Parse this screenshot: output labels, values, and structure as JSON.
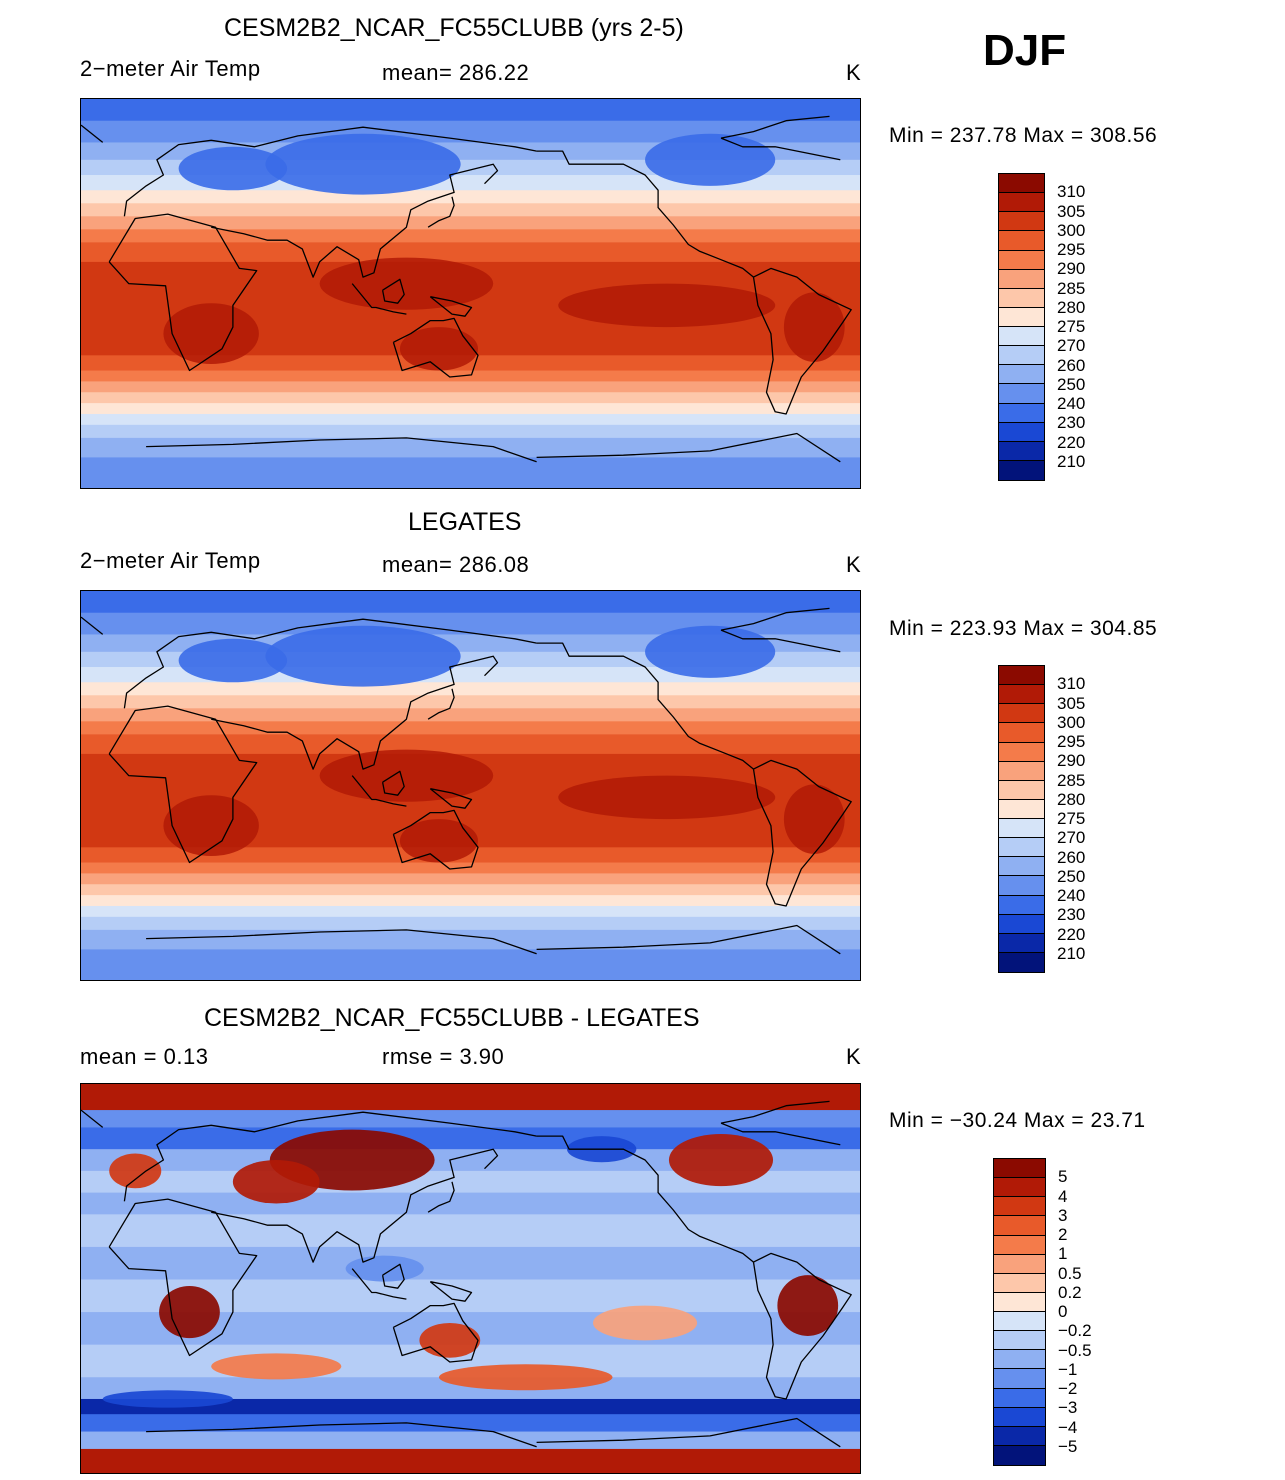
{
  "season": "DJF",
  "panels": [
    {
      "title": "CESM2B2_NCAR_FC55CLUBB (yrs 2-5)",
      "variable": "2−meter Air Temp",
      "stat": "mean=  286.22",
      "units": "K",
      "minmax": "Min  =  237.78  Max  =  308.56"
    },
    {
      "title": "LEGATES",
      "variable": "2−meter Air Temp",
      "stat": "mean=  286.08",
      "units": "K",
      "minmax": "Min  =  223.93  Max  =  304.85"
    },
    {
      "title": "CESM2B2_NCAR_FC55CLUBB - LEGATES",
      "stat1": "mean  =      0.13",
      "stat2": "rmse  =      3.90",
      "units": "K",
      "minmax": "Min  =  −30.24  Max  =     23.71"
    }
  ],
  "chart_data": [
    {
      "type": "heatmap",
      "title": "CESM2B2_NCAR_FC55CLUBB (yrs 2-5)",
      "variable": "2-meter Air Temp",
      "units": "K",
      "mean": 286.22,
      "min": 237.78,
      "max": 308.56,
      "colorbar": {
        "levels": [
          "310",
          "305",
          "300",
          "295",
          "290",
          "285",
          "280",
          "275",
          "270",
          "260",
          "250",
          "240",
          "230",
          "220",
          "210"
        ],
        "colors": [
          "#8b0a00",
          "#b11a06",
          "#d13812",
          "#e85a2a",
          "#f47b4a",
          "#f9a27c",
          "#fdc7aa",
          "#fee6d6",
          "#d6e4f8",
          "#b5cdf6",
          "#8fb0f2",
          "#6690ee",
          "#3a6ce8",
          "#1a48d4",
          "#0a28a8",
          "#02137a"
        ]
      }
    },
    {
      "type": "heatmap",
      "title": "LEGATES",
      "variable": "2-meter Air Temp",
      "units": "K",
      "mean": 286.08,
      "min": 223.93,
      "max": 304.85,
      "colorbar": {
        "levels": [
          "310",
          "305",
          "300",
          "295",
          "290",
          "285",
          "280",
          "275",
          "270",
          "260",
          "250",
          "240",
          "230",
          "220",
          "210"
        ],
        "colors": [
          "#8b0a00",
          "#b11a06",
          "#d13812",
          "#e85a2a",
          "#f47b4a",
          "#f9a27c",
          "#fdc7aa",
          "#fee6d6",
          "#d6e4f8",
          "#b5cdf6",
          "#8fb0f2",
          "#6690ee",
          "#3a6ce8",
          "#1a48d4",
          "#0a28a8",
          "#02137a"
        ]
      }
    },
    {
      "type": "heatmap",
      "title": "CESM2B2_NCAR_FC55CLUBB - LEGATES",
      "units": "K",
      "mean": 0.13,
      "rmse": 3.9,
      "min": -30.24,
      "max": 23.71,
      "colorbar": {
        "levels": [
          "5",
          "4",
          "3",
          "2",
          "1",
          "0.5",
          "0.2",
          "0",
          "−0.2",
          "−0.5",
          "−1",
          "−2",
          "−3",
          "−4",
          "−5"
        ],
        "colors": [
          "#8b0a00",
          "#b11a06",
          "#d13812",
          "#e85a2a",
          "#f47b4a",
          "#f9a27c",
          "#fdc7aa",
          "#fee6d6",
          "#d6e4f8",
          "#b5cdf6",
          "#8fb0f2",
          "#6690ee",
          "#3a6ce8",
          "#1a48d4",
          "#0a28a8",
          "#02137a"
        ]
      }
    }
  ]
}
